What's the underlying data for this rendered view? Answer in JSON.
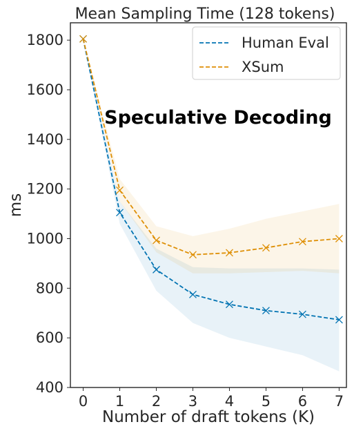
{
  "chart_data": {
    "type": "line",
    "title": "Mean Sampling Time (128 tokens)",
    "xlabel": "Number of draft tokens (K)",
    "ylabel": "ms",
    "annotation": "Speculative Decoding",
    "x": [
      0,
      1,
      2,
      3,
      4,
      5,
      6,
      7
    ],
    "xlim": [
      -0.35,
      7.2
    ],
    "ylim": [
      400,
      1870
    ],
    "yticks": [
      400,
      600,
      800,
      1000,
      1200,
      1400,
      1600,
      1800
    ],
    "xticks": [
      0,
      1,
      2,
      3,
      4,
      5,
      6,
      7
    ],
    "grid": false,
    "legend_position": "top-right",
    "series": [
      {
        "name": "Human Eval",
        "color": "#0173b2",
        "line_style": "dashed",
        "marker": "x",
        "values": [
          1805,
          1105,
          875,
          775,
          735,
          710,
          695,
          673
        ],
        "band_lower": [
          1805,
          1060,
          790,
          660,
          600,
          565,
          530,
          465
        ],
        "band_upper": [
          1805,
          1150,
          960,
          885,
          880,
          880,
          880,
          875
        ]
      },
      {
        "name": "XSum",
        "color": "#de8f05",
        "line_style": "dashed",
        "marker": "x",
        "values": [
          1805,
          1195,
          993,
          935,
          943,
          963,
          988,
          1000
        ],
        "band_lower": [
          1805,
          1150,
          945,
          860,
          860,
          865,
          870,
          860
        ],
        "band_upper": [
          1805,
          1240,
          1050,
          1010,
          1040,
          1080,
          1110,
          1140
        ]
      }
    ]
  }
}
